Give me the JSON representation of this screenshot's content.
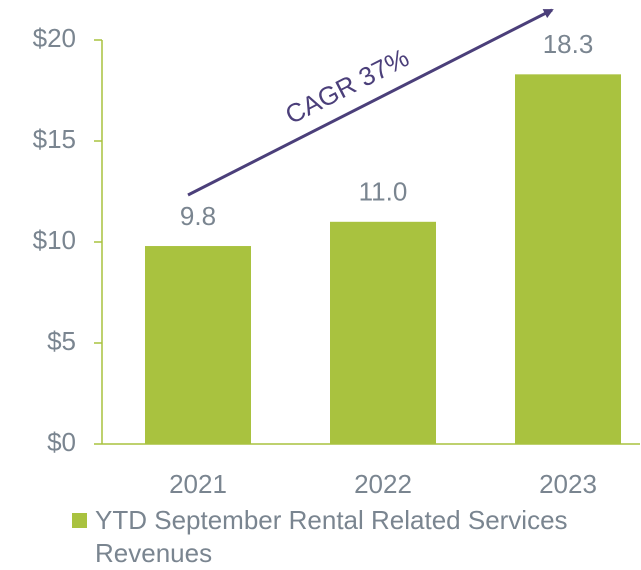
{
  "chart_data": {
    "type": "bar",
    "categories": [
      "2021",
      "2022",
      "2023"
    ],
    "series": [
      {
        "name": "YTD September Rental Related Services Revenues",
        "color": "#a9c23f",
        "values": [
          9.8,
          11.0,
          18.3
        ],
        "value_labels": [
          "9.8",
          "11.0",
          "18.3"
        ]
      }
    ],
    "ylim": [
      0,
      20
    ],
    "yticks": [
      {
        "value": 0,
        "label": "$0"
      },
      {
        "value": 5,
        "label": "$5"
      },
      {
        "value": 10,
        "label": "$10"
      },
      {
        "value": 15,
        "label": "$15"
      },
      {
        "value": 20,
        "label": "$20"
      }
    ],
    "annotation": "CAGR 37%",
    "legend": "bottom"
  }
}
